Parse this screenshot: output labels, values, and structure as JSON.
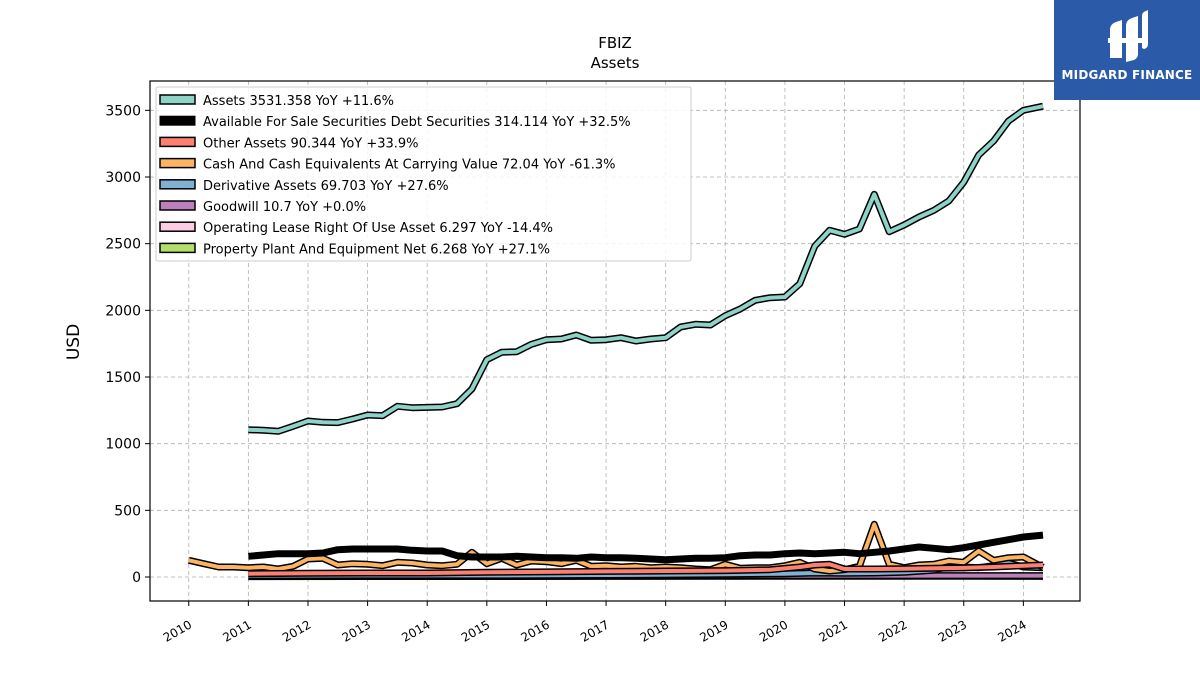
{
  "logo": {
    "text": "MIDGARD FINANCE",
    "icon": "midgard-logo-icon",
    "color": "#2a5aa8"
  },
  "chart_data": {
    "type": "line",
    "title": "FBIZ",
    "subtitle": "Assets",
    "ylabel": "USD",
    "xlabel": "",
    "ylim": [
      -180,
      3720
    ],
    "xlim": [
      2009.35,
      2024.95
    ],
    "yticks": [
      0,
      500,
      1000,
      1500,
      2000,
      2500,
      3000,
      3500
    ],
    "xticks": [
      2010,
      2011,
      2012,
      2013,
      2014,
      2015,
      2016,
      2017,
      2018,
      2019,
      2020,
      2021,
      2022,
      2023,
      2024
    ],
    "grid": true,
    "legend_position": "top-left",
    "series": [
      {
        "name": "Assets",
        "legend": "Assets  3531.358 YoY +11.6%",
        "color": "#8dd3c7",
        "width": 4,
        "outline": true,
        "points": [
          [
            2011.0,
            1105
          ],
          [
            2011.25,
            1100
          ],
          [
            2011.5,
            1093
          ],
          [
            2011.75,
            1130
          ],
          [
            2012.0,
            1170
          ],
          [
            2012.25,
            1160
          ],
          [
            2012.5,
            1158
          ],
          [
            2012.75,
            1185
          ],
          [
            2013.0,
            1215
          ],
          [
            2013.25,
            1210
          ],
          [
            2013.5,
            1280
          ],
          [
            2013.75,
            1270
          ],
          [
            2014.0,
            1272
          ],
          [
            2014.25,
            1275
          ],
          [
            2014.5,
            1300
          ],
          [
            2014.75,
            1410
          ],
          [
            2015.0,
            1630
          ],
          [
            2015.25,
            1685
          ],
          [
            2015.5,
            1690
          ],
          [
            2015.75,
            1745
          ],
          [
            2016.0,
            1780
          ],
          [
            2016.25,
            1785
          ],
          [
            2016.5,
            1815
          ],
          [
            2016.75,
            1775
          ],
          [
            2017.0,
            1780
          ],
          [
            2017.25,
            1795
          ],
          [
            2017.5,
            1770
          ],
          [
            2017.75,
            1785
          ],
          [
            2018.0,
            1795
          ],
          [
            2018.25,
            1875
          ],
          [
            2018.5,
            1895
          ],
          [
            2018.75,
            1890
          ],
          [
            2019.0,
            1960
          ],
          [
            2019.25,
            2010
          ],
          [
            2019.5,
            2075
          ],
          [
            2019.75,
            2095
          ],
          [
            2020.0,
            2100
          ],
          [
            2020.25,
            2200
          ],
          [
            2020.5,
            2480
          ],
          [
            2020.75,
            2600
          ],
          [
            2021.0,
            2570
          ],
          [
            2021.25,
            2610
          ],
          [
            2021.5,
            2870
          ],
          [
            2021.75,
            2590
          ],
          [
            2022.0,
            2640
          ],
          [
            2022.25,
            2700
          ],
          [
            2022.5,
            2750
          ],
          [
            2022.75,
            2820
          ],
          [
            2023.0,
            2960
          ],
          [
            2023.25,
            3165
          ],
          [
            2023.5,
            3270
          ],
          [
            2023.75,
            3420
          ],
          [
            2024.0,
            3500
          ],
          [
            2024.33,
            3531
          ]
        ]
      },
      {
        "name": "Available For Sale Securities Debt Securities",
        "legend": "Available For Sale Securities Debt Securities  314.114 YoY +32.5%",
        "color": "#000000",
        "width": 7,
        "outline": false,
        "points": [
          [
            2011.0,
            155
          ],
          [
            2011.25,
            165
          ],
          [
            2011.5,
            175
          ],
          [
            2011.75,
            175
          ],
          [
            2012.0,
            175
          ],
          [
            2012.25,
            180
          ],
          [
            2012.5,
            205
          ],
          [
            2012.75,
            210
          ],
          [
            2013.0,
            210
          ],
          [
            2013.25,
            210
          ],
          [
            2013.5,
            210
          ],
          [
            2013.75,
            200
          ],
          [
            2014.0,
            195
          ],
          [
            2014.25,
            195
          ],
          [
            2014.5,
            160
          ],
          [
            2014.75,
            150
          ],
          [
            2015.0,
            150
          ],
          [
            2015.25,
            150
          ],
          [
            2015.5,
            155
          ],
          [
            2015.75,
            150
          ],
          [
            2016.0,
            145
          ],
          [
            2016.25,
            145
          ],
          [
            2016.5,
            140
          ],
          [
            2016.75,
            150
          ],
          [
            2017.0,
            145
          ],
          [
            2017.25,
            145
          ],
          [
            2017.5,
            140
          ],
          [
            2017.75,
            135
          ],
          [
            2018.0,
            130
          ],
          [
            2018.25,
            135
          ],
          [
            2018.5,
            140
          ],
          [
            2018.75,
            140
          ],
          [
            2019.0,
            145
          ],
          [
            2019.25,
            160
          ],
          [
            2019.5,
            165
          ],
          [
            2019.75,
            165
          ],
          [
            2020.0,
            175
          ],
          [
            2020.25,
            180
          ],
          [
            2020.5,
            175
          ],
          [
            2020.75,
            180
          ],
          [
            2021.0,
            185
          ],
          [
            2021.25,
            175
          ],
          [
            2021.5,
            185
          ],
          [
            2021.75,
            195
          ],
          [
            2022.0,
            210
          ],
          [
            2022.25,
            225
          ],
          [
            2022.5,
            215
          ],
          [
            2022.75,
            205
          ],
          [
            2023.0,
            220
          ],
          [
            2023.25,
            240
          ],
          [
            2023.5,
            260
          ],
          [
            2023.75,
            280
          ],
          [
            2024.0,
            300
          ],
          [
            2024.33,
            314
          ]
        ]
      },
      {
        "name": "Other Assets",
        "legend": "Other Assets  90.344 YoY +33.9%",
        "color": "#fb8072",
        "width": 4,
        "outline": true,
        "points": [
          [
            2011.0,
            25
          ],
          [
            2012.0,
            28
          ],
          [
            2013.0,
            30
          ],
          [
            2014.0,
            30
          ],
          [
            2015.0,
            35
          ],
          [
            2016.0,
            38
          ],
          [
            2017.0,
            42
          ],
          [
            2018.0,
            45
          ],
          [
            2019.0,
            48
          ],
          [
            2019.75,
            55
          ],
          [
            2020.25,
            75
          ],
          [
            2020.5,
            90
          ],
          [
            2020.75,
            95
          ],
          [
            2021.0,
            60
          ],
          [
            2021.5,
            60
          ],
          [
            2022.0,
            62
          ],
          [
            2022.5,
            65
          ],
          [
            2023.0,
            68
          ],
          [
            2023.5,
            75
          ],
          [
            2024.0,
            85
          ],
          [
            2024.33,
            90
          ]
        ]
      },
      {
        "name": "Cash And Cash Equivalents At Carrying Value",
        "legend": "Cash And Cash Equivalents At Carrying Value  72.04 YoY -61.3%",
        "color": "#fdb462",
        "width": 4,
        "outline": true,
        "points": [
          [
            2010.0,
            125
          ],
          [
            2010.25,
            100
          ],
          [
            2010.5,
            75
          ],
          [
            2010.75,
            75
          ],
          [
            2011.0,
            70
          ],
          [
            2011.25,
            75
          ],
          [
            2011.5,
            60
          ],
          [
            2011.75,
            80
          ],
          [
            2012.0,
            135
          ],
          [
            2012.25,
            140
          ],
          [
            2012.5,
            90
          ],
          [
            2012.75,
            100
          ],
          [
            2013.0,
            95
          ],
          [
            2013.25,
            85
          ],
          [
            2013.5,
            110
          ],
          [
            2013.75,
            105
          ],
          [
            2014.0,
            90
          ],
          [
            2014.25,
            85
          ],
          [
            2014.5,
            95
          ],
          [
            2014.75,
            185
          ],
          [
            2015.0,
            100
          ],
          [
            2015.25,
            140
          ],
          [
            2015.5,
            90
          ],
          [
            2015.75,
            120
          ],
          [
            2016.0,
            115
          ],
          [
            2016.25,
            100
          ],
          [
            2016.5,
            125
          ],
          [
            2016.75,
            80
          ],
          [
            2017.0,
            85
          ],
          [
            2017.25,
            75
          ],
          [
            2017.5,
            80
          ],
          [
            2017.75,
            70
          ],
          [
            2018.0,
            75
          ],
          [
            2018.25,
            70
          ],
          [
            2018.5,
            60
          ],
          [
            2018.75,
            55
          ],
          [
            2019.0,
            95
          ],
          [
            2019.25,
            65
          ],
          [
            2019.5,
            70
          ],
          [
            2019.75,
            70
          ],
          [
            2020.0,
            85
          ],
          [
            2020.25,
            110
          ],
          [
            2020.5,
            60
          ],
          [
            2020.75,
            45
          ],
          [
            2021.0,
            55
          ],
          [
            2021.25,
            80
          ],
          [
            2021.5,
            395
          ],
          [
            2021.75,
            95
          ],
          [
            2022.0,
            70
          ],
          [
            2022.25,
            90
          ],
          [
            2022.5,
            95
          ],
          [
            2022.75,
            120
          ],
          [
            2023.0,
            110
          ],
          [
            2023.25,
            195
          ],
          [
            2023.5,
            125
          ],
          [
            2023.75,
            145
          ],
          [
            2024.0,
            150
          ],
          [
            2024.33,
            72
          ]
        ]
      },
      {
        "name": "Derivative Assets",
        "legend": "Derivative Assets  69.703 YoY +27.6%",
        "color": "#80b1d3",
        "width": 4,
        "outline": true,
        "points": [
          [
            2011.0,
            10
          ],
          [
            2013.0,
            12
          ],
          [
            2015.0,
            12
          ],
          [
            2017.0,
            15
          ],
          [
            2019.0,
            20
          ],
          [
            2020.0,
            25
          ],
          [
            2020.5,
            30
          ],
          [
            2021.0,
            28
          ],
          [
            2021.5,
            30
          ],
          [
            2022.0,
            35
          ],
          [
            2022.5,
            50
          ],
          [
            2022.75,
            80
          ],
          [
            2023.0,
            75
          ],
          [
            2023.25,
            70
          ],
          [
            2023.5,
            85
          ],
          [
            2023.75,
            105
          ],
          [
            2024.0,
            75
          ],
          [
            2024.33,
            70
          ]
        ]
      },
      {
        "name": "Goodwill",
        "legend": "Goodwill  10.7 YoY +0.0%",
        "color": "#bc80bd",
        "width": 4,
        "outline": true,
        "points": [
          [
            2011.0,
            10.7
          ],
          [
            2024.33,
            10.7
          ]
        ]
      },
      {
        "name": "Operating Lease Right Of Use Asset",
        "legend": "Operating Lease Right Of Use Asset  6.297 YoY -14.4%",
        "color": "#fccde5",
        "width": 4,
        "outline": true,
        "points": [
          [
            2019.0,
            7
          ],
          [
            2020.0,
            8
          ],
          [
            2021.0,
            7.5
          ],
          [
            2022.0,
            7.3
          ],
          [
            2023.0,
            7.3
          ],
          [
            2024.33,
            6.3
          ]
        ]
      },
      {
        "name": "Property Plant And Equipment Net",
        "legend": "Property Plant And Equipment Net  6.268 YoY +27.1%",
        "color": "#b3de69",
        "width": 4,
        "outline": true,
        "points": [
          [
            2011.0,
            3
          ],
          [
            2013.0,
            3.5
          ],
          [
            2015.0,
            4
          ],
          [
            2017.0,
            4.5
          ],
          [
            2019.0,
            5
          ],
          [
            2021.0,
            5
          ],
          [
            2023.0,
            5
          ],
          [
            2024.33,
            6.3
          ]
        ]
      }
    ]
  }
}
